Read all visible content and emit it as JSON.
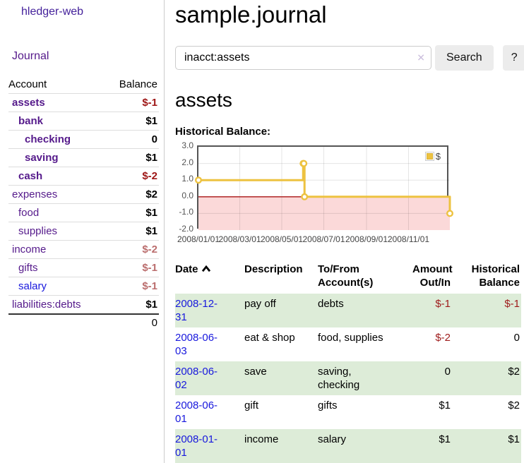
{
  "sidebar": {
    "brand": "hledger-web",
    "journal_link": "Journal",
    "accounts": {
      "headers": {
        "account": "Account",
        "balance": "Balance"
      },
      "rows": [
        {
          "name": "assets",
          "depth": 1,
          "bold": true,
          "balance": "$-1",
          "balance_class": "neg-strong"
        },
        {
          "name": "bank",
          "depth": 2,
          "bold": true,
          "balance": "$1",
          "balance_class": ""
        },
        {
          "name": "checking",
          "depth": 3,
          "bold": true,
          "balance": "0",
          "balance_class": ""
        },
        {
          "name": "saving",
          "depth": 3,
          "bold": true,
          "balance": "$1",
          "balance_class": ""
        },
        {
          "name": "cash",
          "depth": 2,
          "bold": true,
          "balance": "$-2",
          "balance_class": "neg-strong"
        },
        {
          "name": "expenses",
          "depth": 1,
          "bold": false,
          "balance": "$2",
          "balance_class": ""
        },
        {
          "name": "food",
          "depth": 2,
          "bold": false,
          "balance": "$1",
          "balance_class": ""
        },
        {
          "name": "supplies",
          "depth": 2,
          "bold": false,
          "balance": "$1",
          "balance_class": ""
        },
        {
          "name": "income",
          "depth": 1,
          "bold": false,
          "balance": "$-2",
          "balance_class": "neg-soft"
        },
        {
          "name": "gifts",
          "depth": 2,
          "bold": false,
          "balance": "$-1",
          "balance_class": "neg-soft"
        },
        {
          "name": "salary",
          "depth": 2,
          "bold": false,
          "balance": "$-1",
          "balance_class": "neg-soft",
          "link_color": "blue"
        },
        {
          "name": "liabilities:debts",
          "depth": 1,
          "bold": false,
          "balance": "$1",
          "balance_class": ""
        }
      ],
      "total": "0"
    }
  },
  "header": {
    "title": "sample.journal"
  },
  "search": {
    "value": "inacct:assets",
    "clear_icon": "✕",
    "button_label": "Search",
    "help_label": "?"
  },
  "account_view": {
    "heading": "assets",
    "chart_label": "Historical Balance:"
  },
  "chart_data": {
    "type": "line",
    "style": "step",
    "title": "Historical Balance:",
    "series": [
      {
        "name": "$",
        "color": "#EDC240",
        "points": [
          [
            "2008/01/01",
            1
          ],
          [
            "2008/06/01",
            2
          ],
          [
            "2008/06/02",
            2
          ],
          [
            "2008/06/03",
            0
          ],
          [
            "2008/12/31",
            -1
          ]
        ]
      }
    ],
    "x_range": [
      "2008/01/01",
      "2008/12/31"
    ],
    "ylim": [
      -2,
      3
    ],
    "y_ticks": [
      "3.0",
      "2.0",
      "1.0",
      "0.0",
      "-1.0",
      "-2.0"
    ],
    "x_ticks": [
      "2008/01/01",
      "2008/03/01",
      "2008/05/01",
      "2008/07/01",
      "2008/09/01",
      "2008/11/01"
    ],
    "legend": {
      "label": "$",
      "position": "top-right"
    },
    "grid": true,
    "negative_region_color": "#fbd9d9",
    "zero_line_color": "#a81414"
  },
  "register": {
    "headers": {
      "date": "Date",
      "description": "Description",
      "account": "To/From Account(s)",
      "amount": "Amount Out/In",
      "balance": "Historical Balance"
    },
    "rows": [
      {
        "date": "2008-12-31",
        "description": "pay off",
        "accounts": "debts",
        "amount": "$-1",
        "amount_neg": true,
        "balance": "$-1",
        "balance_neg": true
      },
      {
        "date": "2008-06-03",
        "description": "eat & shop",
        "accounts": "food, supplies",
        "amount": "$-2",
        "amount_neg": true,
        "balance": "0",
        "balance_neg": false
      },
      {
        "date": "2008-06-02",
        "description": "save",
        "accounts": "saving, checking",
        "amount": "0",
        "amount_neg": false,
        "balance": "$2",
        "balance_neg": false
      },
      {
        "date": "2008-06-01",
        "description": "gift",
        "accounts": "gifts",
        "amount": "$1",
        "amount_neg": false,
        "balance": "$2",
        "balance_neg": false
      },
      {
        "date": "2008-01-01",
        "description": "income",
        "accounts": "salary",
        "amount": "$1",
        "amount_neg": false,
        "balance": "$1",
        "balance_neg": false
      }
    ]
  },
  "colors": {
    "accent_purple": "#551A8B",
    "link_blue": "#1818dd",
    "negative_strong": "#9e1616",
    "negative_soft": "#bb6e6e",
    "row_stripe_green": "#ddecd8",
    "chart_line": "#EDC240",
    "chart_negative_region": "#fbd9d9",
    "chart_zero_line": "#a81414"
  }
}
